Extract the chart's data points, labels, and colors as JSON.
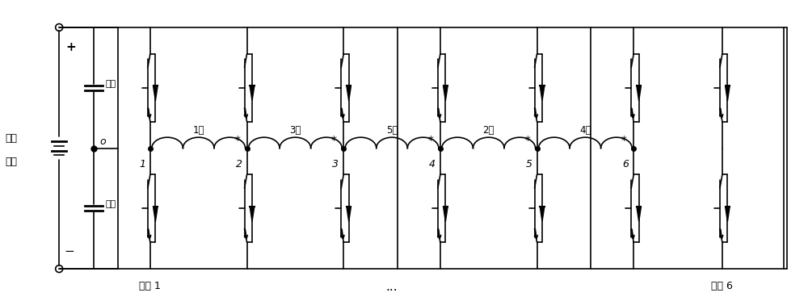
{
  "bg_color": "#ffffff",
  "line_color": "#000000",
  "fig_width": 10.0,
  "fig_height": 3.68,
  "dpi": 100,
  "left_label": [
    "直流",
    "电压"
  ],
  "cap_label": [
    "电容",
    "电容"
  ],
  "plus_label": "+",
  "minus_label": "−",
  "o_label": "o",
  "mid_label": "o",
  "node_o": "o",
  "bridge_nodes": [
    "1",
    "2",
    "3",
    "4",
    "5",
    "6"
  ],
  "phase_labels": [
    "1相",
    "3相",
    "5相",
    "2相",
    "4相"
  ],
  "bridge_arm_labels": [
    "桥臂 1",
    "...",
    "桥臂 6"
  ],
  "font_size": 9
}
